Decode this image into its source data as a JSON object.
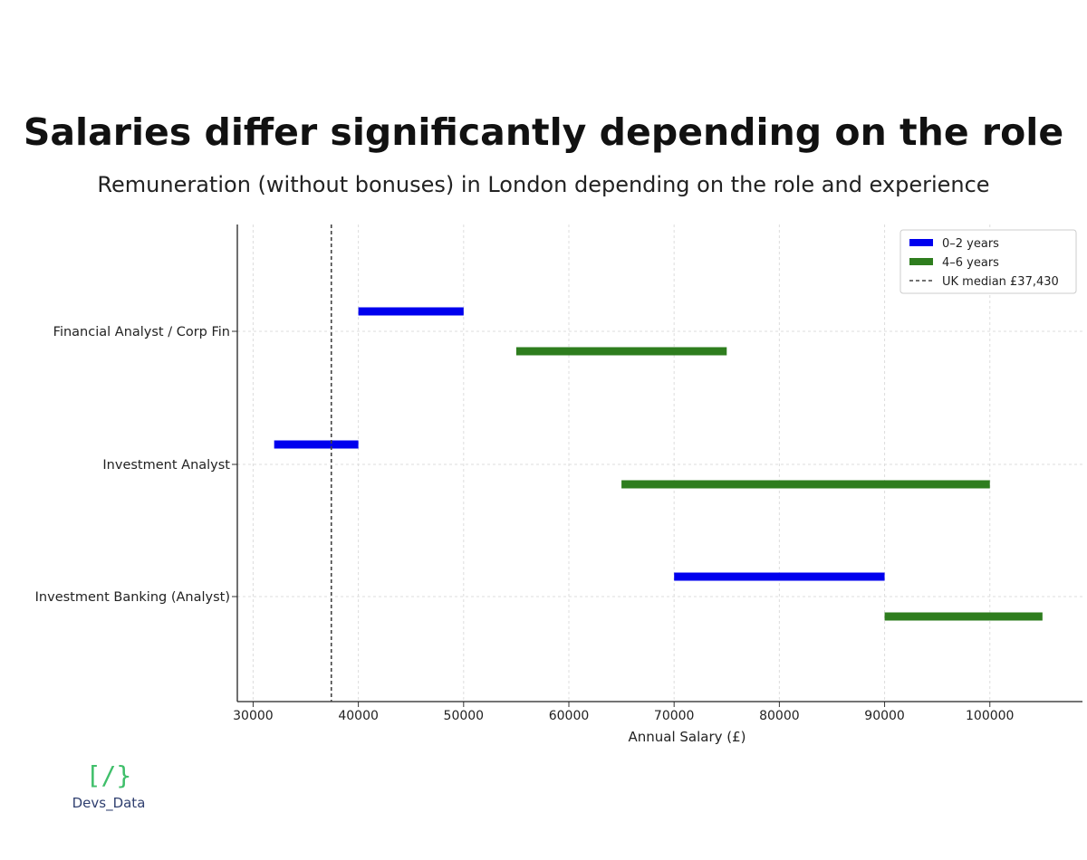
{
  "header": {
    "title": "Salaries differ significantly depending on the role",
    "subtitle": "Remuneration (without bonuses) in London depending on the role and experience"
  },
  "chart_data": {
    "type": "bar",
    "orientation": "horizontal-range",
    "xlabel": "Annual Salary (£)",
    "ylabel": "",
    "xlim": [
      28500,
      108800
    ],
    "xticks": [
      30000,
      40000,
      50000,
      60000,
      70000,
      80000,
      90000,
      100000
    ],
    "categories": [
      "Financial Analyst / Corp Fin",
      "Investment Analyst",
      "Investment Banking (Analyst)"
    ],
    "series": [
      {
        "name": "0–2 years",
        "color": "#0000ee",
        "ranges": [
          [
            40000,
            50000
          ],
          [
            32000,
            40000
          ],
          [
            70000,
            90000
          ]
        ]
      },
      {
        "name": "4–6 years",
        "color": "#2e7d1e",
        "ranges": [
          [
            55000,
            75000
          ],
          [
            65000,
            100000
          ],
          [
            90000,
            105000
          ]
        ]
      }
    ],
    "reference_line": {
      "name": "UK median £37,430",
      "value": 37430,
      "style": "dashed"
    },
    "grid": true,
    "legend_position": "top-right"
  },
  "logo": {
    "mark": "[/}",
    "text": "Devs_Data"
  }
}
